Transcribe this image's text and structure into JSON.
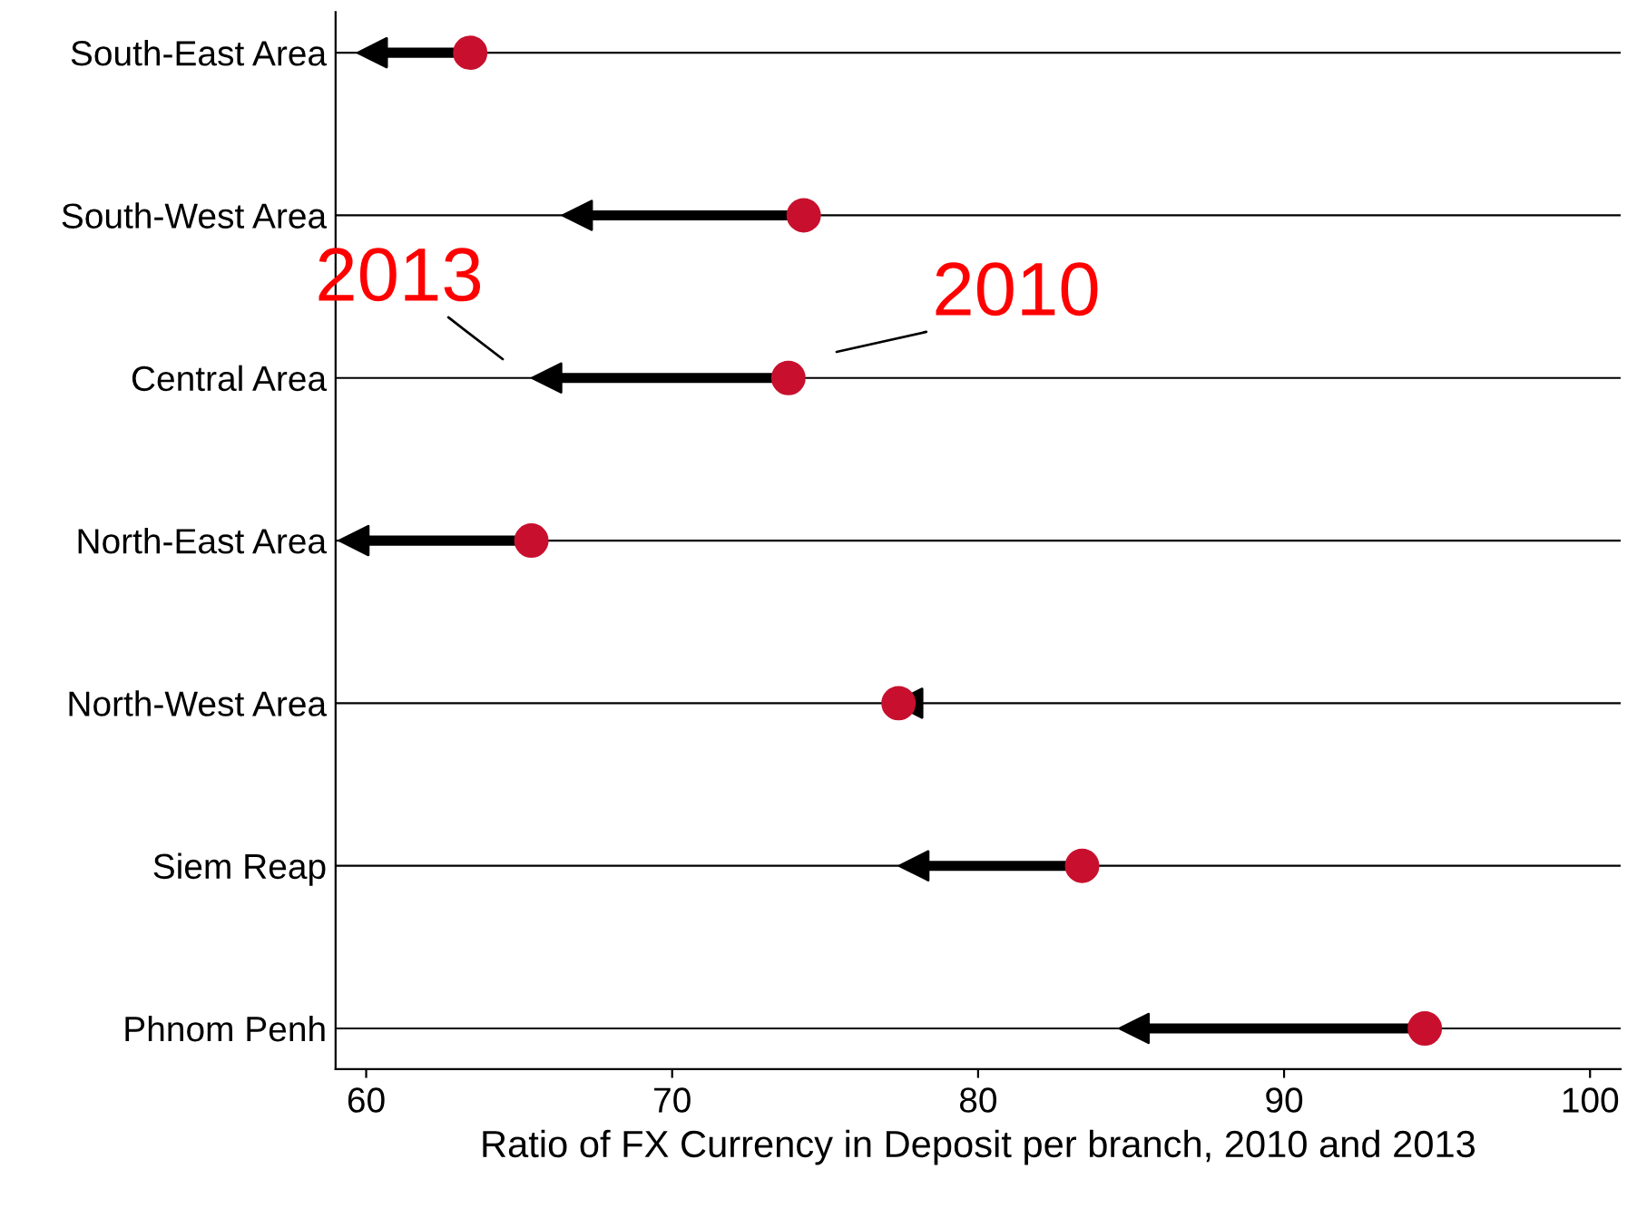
{
  "chart_data": {
    "type": "scatter",
    "orientation": "horizontal",
    "categories": [
      "South-East Area",
      "South-West Area",
      "Central Area",
      "North-East Area",
      "North-West Area",
      "Siem Reap",
      "Phnom Penh"
    ],
    "series": [
      {
        "color": "#c8102e",
        "marker": "circle",
        "values": [
          63.4,
          74.3,
          73.8,
          65.4,
          77.4,
          83.4,
          94.6
        ]
      },
      {
        "color": "#000000",
        "marker": "triangle",
        "values": [
          60.2,
          66.9,
          65.9,
          59.6,
          77.7,
          77.9,
          85.1
        ]
      }
    ],
    "xlabel": "Ratio of FX Currency in Deposit per branch, 2010 and 2013",
    "xlim": [
      59,
      101
    ],
    "xticks": [
      60,
      70,
      80,
      90,
      100
    ],
    "grid": "y",
    "annotations": [
      "2013",
      "2010"
    ]
  }
}
